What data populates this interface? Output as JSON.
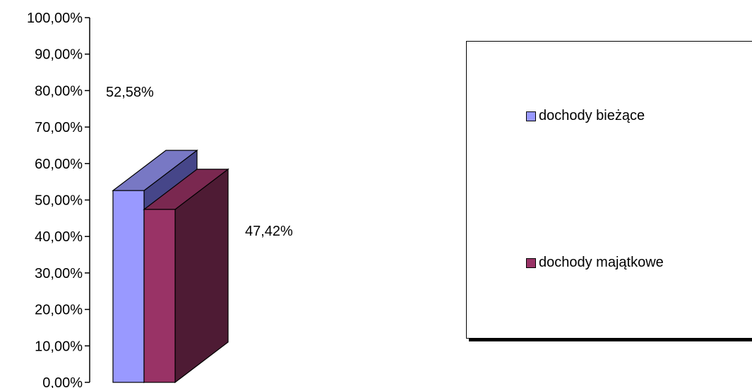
{
  "chart_data": {
    "type": "bar",
    "three_d": true,
    "categories": [
      ""
    ],
    "series": [
      {
        "name": "dochody bieżące",
        "values": [
          52.58
        ],
        "label": "52,58%",
        "color": "#9999ff",
        "side_color": "#464689",
        "top_color": "#7878c4"
      },
      {
        "name": "dochody majątkowe",
        "values": [
          47.42
        ],
        "label": "47,42%",
        "color": "#993366",
        "side_color": "#4e1b34",
        "top_color": "#7a2850"
      }
    ],
    "ylim": [
      0,
      100
    ],
    "yticks": [
      "0,00%",
      "10,00%",
      "20,00%",
      "30,00%",
      "40,00%",
      "50,00%",
      "60,00%",
      "70,00%",
      "80,00%",
      "90,00%",
      "100,00%"
    ],
    "title": "",
    "xlabel": "",
    "ylabel": "",
    "grid": false,
    "legend_position": "right"
  }
}
